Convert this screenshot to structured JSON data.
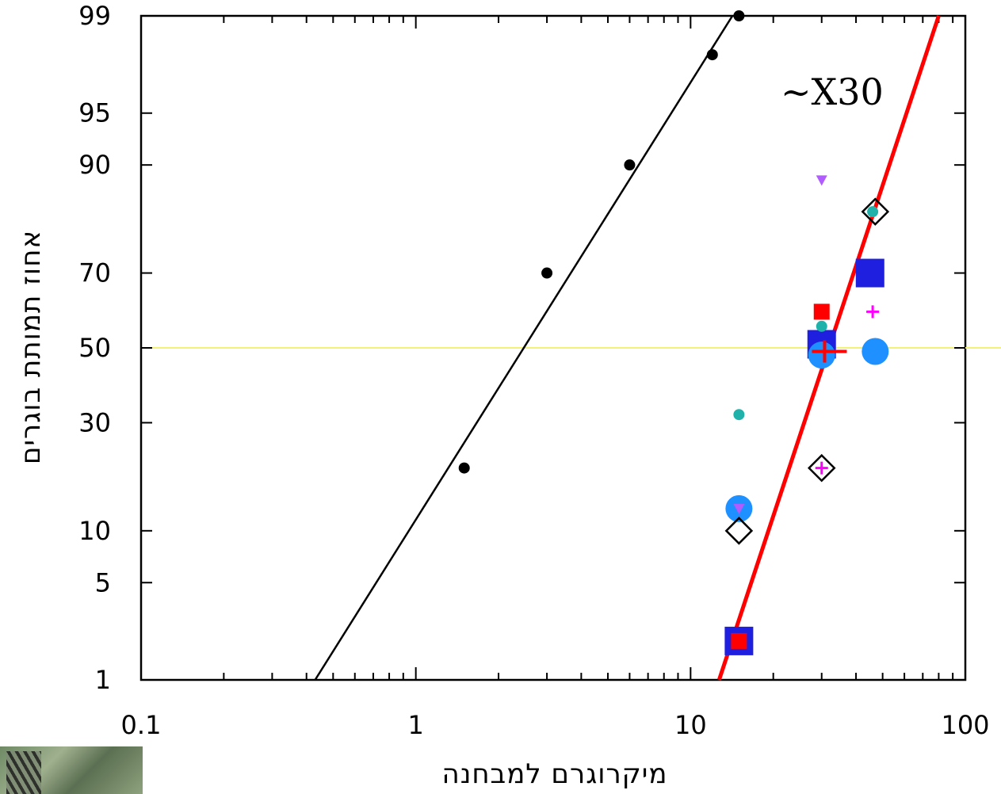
{
  "chart_data": {
    "type": "scatter",
    "title": "",
    "xlabel": "מיקרוגרם למבחנה",
    "ylabel": "אחוז תמותת בוגרים",
    "xscale": "log",
    "yscale": "probit",
    "xlim": [
      0.1,
      100
    ],
    "ylim": [
      1,
      99
    ],
    "x_ticks": [
      "0.1",
      "1",
      "10",
      "100"
    ],
    "y_ticks": [
      "1",
      "5",
      "10",
      "30",
      "50",
      "70",
      "90",
      "95",
      "99"
    ],
    "reference_line_y": 50,
    "annotations": [
      "~X30"
    ],
    "grid": false,
    "colors": {
      "susceptible": "#000000",
      "resistant_line": "#ff0000",
      "reference": "#f2f27a",
      "blue": "#1f1fe0",
      "lightblue": "#1e90ff",
      "red": "#ff0000",
      "teal": "#20b2aa",
      "magenta": "#ff00ff",
      "violet": "#b05cff",
      "diamond": "#000000"
    },
    "series": [
      {
        "marker": "circle-small",
        "color": "#000000",
        "points": [
          [
            1.5,
            20
          ],
          [
            3,
            70
          ],
          [
            6,
            90
          ],
          [
            12,
            98
          ],
          [
            15,
            99
          ]
        ]
      },
      {
        "marker": "square",
        "color": "#1f1fe0",
        "points": [
          [
            15,
            2
          ],
          [
            30,
            51
          ],
          [
            45,
            70
          ]
        ]
      },
      {
        "marker": "square-small",
        "color": "#ff0000",
        "points": [
          [
            15,
            2
          ],
          [
            30,
            60
          ]
        ]
      },
      {
        "marker": "circle",
        "color": "#1e90ff",
        "points": [
          [
            15,
            13
          ],
          [
            30,
            48
          ],
          [
            47,
            49
          ]
        ]
      },
      {
        "marker": "circle-small",
        "color": "#20b2aa",
        "points": [
          [
            15,
            32
          ],
          [
            30,
            56
          ],
          [
            46,
            83
          ]
        ]
      },
      {
        "marker": "diamond",
        "color": "#000000",
        "points": [
          [
            15,
            10
          ],
          [
            30,
            20
          ],
          [
            47,
            83
          ]
        ]
      },
      {
        "marker": "plus",
        "color": "#ff00ff",
        "points": [
          [
            30,
            20
          ],
          [
            46,
            60
          ]
        ]
      },
      {
        "marker": "triangle-down",
        "color": "#b05cff",
        "points": [
          [
            30,
            88
          ],
          [
            15,
            13
          ]
        ]
      },
      {
        "marker": "plus-large",
        "color": "#ff0000",
        "points": [
          [
            32,
            49
          ]
        ]
      }
    ],
    "fit_lines": [
      {
        "color": "#000000",
        "x": [
          0.43,
          14.2
        ],
        "y": [
          1,
          99
        ]
      },
      {
        "color": "#ff0000",
        "x": [
          12.7,
          80
        ],
        "y": [
          1,
          99
        ]
      }
    ]
  }
}
